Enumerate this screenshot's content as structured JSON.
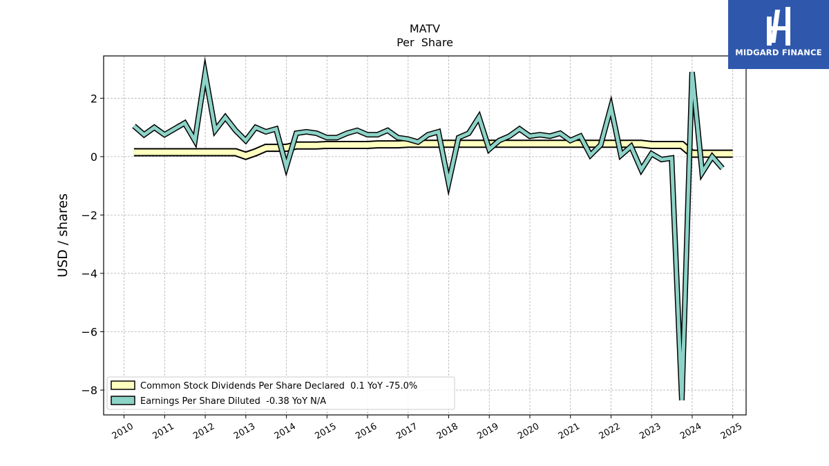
{
  "brand": {
    "name": "MIDGARD FINANCE",
    "background": "#2f58ad",
    "foreground": "#ffffff",
    "icon": "midgard-logo-icon"
  },
  "chart_data": {
    "type": "line",
    "title": "MATV",
    "subtitle": "Per  Share",
    "xlabel": "",
    "ylabel": "USD / shares",
    "xlim": [
      "2009-07-01",
      "2025-05-01"
    ],
    "ylim": [
      -8.85,
      3.45
    ],
    "x_ticks": [
      "2010",
      "2011",
      "2012",
      "2013",
      "2014",
      "2015",
      "2016",
      "2017",
      "2018",
      "2019",
      "2020",
      "2021",
      "2022",
      "2023",
      "2024",
      "2025"
    ],
    "y_ticks": [
      2,
      0,
      -2,
      -4,
      -6,
      -8
    ],
    "y_tick_labels": [
      "2",
      "0",
      "−2",
      "−4",
      "−6",
      "−8"
    ],
    "grid": true,
    "legend_position": "lower-left",
    "series": [
      {
        "name": "Common Stock Dividends Per Share Declared  0.1 YoY -75.0%",
        "color": "#ffffbf",
        "points": [
          [
            "2010-03-31",
            0.15
          ],
          [
            "2010-06-30",
            0.15
          ],
          [
            "2010-09-30",
            0.15
          ],
          [
            "2010-12-31",
            0.15
          ],
          [
            "2011-03-31",
            0.15
          ],
          [
            "2011-06-30",
            0.15
          ],
          [
            "2011-09-30",
            0.15
          ],
          [
            "2011-12-31",
            0.15
          ],
          [
            "2012-03-31",
            0.15
          ],
          [
            "2012-06-30",
            0.15
          ],
          [
            "2012-09-30",
            0.15
          ],
          [
            "2012-12-31",
            0.03
          ],
          [
            "2013-03-31",
            0.15
          ],
          [
            "2013-06-30",
            0.3
          ],
          [
            "2013-09-30",
            0.3
          ],
          [
            "2013-12-31",
            0.3
          ],
          [
            "2014-03-31",
            0.38
          ],
          [
            "2014-06-30",
            0.38
          ],
          [
            "2014-09-30",
            0.38
          ],
          [
            "2014-12-31",
            0.4
          ],
          [
            "2015-03-31",
            0.4
          ],
          [
            "2015-06-30",
            0.4
          ],
          [
            "2015-09-30",
            0.4
          ],
          [
            "2015-12-31",
            0.4
          ],
          [
            "2016-03-31",
            0.42
          ],
          [
            "2016-06-30",
            0.42
          ],
          [
            "2016-09-30",
            0.42
          ],
          [
            "2016-12-31",
            0.44
          ],
          [
            "2017-03-31",
            0.44
          ],
          [
            "2017-06-30",
            0.44
          ],
          [
            "2017-09-30",
            0.44
          ],
          [
            "2017-12-31",
            0.44
          ],
          [
            "2018-03-31",
            0.44
          ],
          [
            "2018-06-30",
            0.44
          ],
          [
            "2018-09-30",
            0.44
          ],
          [
            "2018-12-31",
            0.44
          ],
          [
            "2019-03-31",
            0.44
          ],
          [
            "2019-06-30",
            0.44
          ],
          [
            "2019-09-30",
            0.44
          ],
          [
            "2019-12-31",
            0.44
          ],
          [
            "2020-03-31",
            0.44
          ],
          [
            "2020-06-30",
            0.44
          ],
          [
            "2020-09-30",
            0.44
          ],
          [
            "2020-12-31",
            0.44
          ],
          [
            "2021-03-31",
            0.44
          ],
          [
            "2021-06-30",
            0.44
          ],
          [
            "2021-09-30",
            0.44
          ],
          [
            "2021-12-31",
            0.44
          ],
          [
            "2022-03-31",
            0.44
          ],
          [
            "2022-06-30",
            0.44
          ],
          [
            "2022-09-30",
            0.44
          ],
          [
            "2022-12-31",
            0.4
          ],
          [
            "2023-03-31",
            0.4
          ],
          [
            "2023-06-30",
            0.4
          ],
          [
            "2023-09-30",
            0.4
          ],
          [
            "2023-12-31",
            0.1
          ],
          [
            "2024-03-31",
            0.1
          ],
          [
            "2024-06-30",
            0.1
          ],
          [
            "2024-09-30",
            0.1
          ],
          [
            "2024-12-31",
            0.1
          ]
        ]
      },
      {
        "name": "Earnings Per Share Diluted  -0.38 YoY N/A",
        "color": "#8dd3c7",
        "points": [
          [
            "2010-03-31",
            1.05
          ],
          [
            "2010-06-30",
            0.75
          ],
          [
            "2010-09-30",
            1.0
          ],
          [
            "2010-12-31",
            0.75
          ],
          [
            "2011-03-31",
            0.95
          ],
          [
            "2011-06-30",
            1.15
          ],
          [
            "2011-09-30",
            0.55
          ],
          [
            "2011-12-31",
            2.85
          ],
          [
            "2012-03-31",
            0.9
          ],
          [
            "2012-06-30",
            1.35
          ],
          [
            "2012-09-30",
            0.9
          ],
          [
            "2012-12-31",
            0.55
          ],
          [
            "2013-03-31",
            1.0
          ],
          [
            "2013-06-30",
            0.85
          ],
          [
            "2013-09-30",
            0.95
          ],
          [
            "2013-12-31",
            -0.35
          ],
          [
            "2014-03-31",
            0.8
          ],
          [
            "2014-06-30",
            0.85
          ],
          [
            "2014-09-30",
            0.8
          ],
          [
            "2014-12-31",
            0.65
          ],
          [
            "2015-03-31",
            0.65
          ],
          [
            "2015-06-30",
            0.8
          ],
          [
            "2015-09-30",
            0.9
          ],
          [
            "2015-12-31",
            0.75
          ],
          [
            "2016-03-31",
            0.75
          ],
          [
            "2016-06-30",
            0.9
          ],
          [
            "2016-09-30",
            0.65
          ],
          [
            "2016-12-31",
            0.6
          ],
          [
            "2017-03-31",
            0.5
          ],
          [
            "2017-06-30",
            0.75
          ],
          [
            "2017-09-30",
            0.85
          ],
          [
            "2017-12-31",
            -0.9
          ],
          [
            "2018-03-31",
            0.65
          ],
          [
            "2018-06-30",
            0.8
          ],
          [
            "2018-09-30",
            1.35
          ],
          [
            "2018-12-31",
            0.25
          ],
          [
            "2019-03-31",
            0.55
          ],
          [
            "2019-06-30",
            0.7
          ],
          [
            "2019-09-30",
            0.95
          ],
          [
            "2019-12-31",
            0.7
          ],
          [
            "2020-03-31",
            0.75
          ],
          [
            "2020-06-30",
            0.7
          ],
          [
            "2020-09-30",
            0.8
          ],
          [
            "2020-12-31",
            0.55
          ],
          [
            "2021-03-31",
            0.7
          ],
          [
            "2021-06-30",
            0.05
          ],
          [
            "2021-09-30",
            0.4
          ],
          [
            "2021-12-31",
            1.7
          ],
          [
            "2022-03-31",
            0.05
          ],
          [
            "2022-06-30",
            0.35
          ],
          [
            "2022-09-30",
            -0.45
          ],
          [
            "2022-12-31",
            0.1
          ],
          [
            "2023-03-31",
            -0.1
          ],
          [
            "2023-06-30",
            -0.05
          ],
          [
            "2023-09-30",
            -8.35
          ],
          [
            "2023-12-31",
            2.9
          ],
          [
            "2024-03-31",
            -0.55
          ],
          [
            "2024-06-30",
            0.0
          ],
          [
            "2024-09-30",
            -0.4
          ]
        ]
      }
    ]
  }
}
